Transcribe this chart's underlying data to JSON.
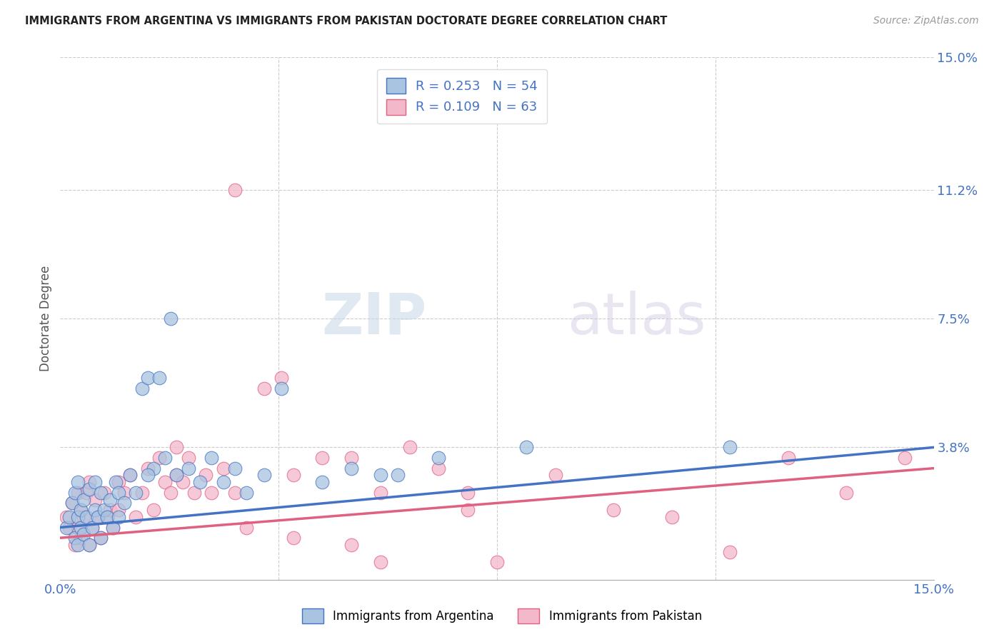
{
  "title": "IMMIGRANTS FROM ARGENTINA VS IMMIGRANTS FROM PAKISTAN DOCTORATE DEGREE CORRELATION CHART",
  "source": "Source: ZipAtlas.com",
  "xlabel": "",
  "ylabel": "Doctorate Degree",
  "xlim": [
    0.0,
    15.0
  ],
  "ylim": [
    0.0,
    15.0
  ],
  "grid_color": "#cccccc",
  "background_color": "#ffffff",
  "argentina_color": "#a8c4e0",
  "argentina_line_color": "#4472c4",
  "pakistan_color": "#f4b8cb",
  "pakistan_line_color": "#e06080",
  "argentina_R": 0.253,
  "argentina_N": 54,
  "pakistan_R": 0.109,
  "pakistan_N": 63,
  "watermark_zip": "ZIP",
  "watermark_atlas": "atlas",
  "argentina_x": [
    0.1,
    0.15,
    0.2,
    0.25,
    0.25,
    0.3,
    0.3,
    0.3,
    0.35,
    0.35,
    0.4,
    0.4,
    0.45,
    0.5,
    0.5,
    0.55,
    0.6,
    0.6,
    0.65,
    0.7,
    0.7,
    0.75,
    0.8,
    0.85,
    0.9,
    0.95,
    1.0,
    1.0,
    1.1,
    1.2,
    1.3,
    1.4,
    1.5,
    1.6,
    1.7,
    1.8,
    2.0,
    2.2,
    2.4,
    2.6,
    2.8,
    3.0,
    3.5,
    4.5,
    5.0,
    5.5,
    6.5,
    8.0,
    11.5,
    3.2,
    3.8,
    1.5,
    1.9,
    5.8
  ],
  "argentina_y": [
    1.5,
    1.8,
    2.2,
    1.2,
    2.5,
    1.0,
    1.8,
    2.8,
    1.5,
    2.0,
    1.3,
    2.3,
    1.8,
    1.0,
    2.6,
    1.5,
    2.0,
    2.8,
    1.8,
    1.2,
    2.5,
    2.0,
    1.8,
    2.3,
    1.5,
    2.8,
    1.8,
    2.5,
    2.2,
    3.0,
    2.5,
    5.5,
    5.8,
    3.2,
    5.8,
    3.5,
    3.0,
    3.2,
    2.8,
    3.5,
    2.8,
    3.2,
    3.0,
    2.8,
    3.2,
    3.0,
    3.5,
    3.8,
    3.8,
    2.5,
    5.5,
    3.0,
    7.5,
    3.0
  ],
  "pakistan_x": [
    0.1,
    0.15,
    0.2,
    0.25,
    0.3,
    0.3,
    0.35,
    0.35,
    0.4,
    0.45,
    0.5,
    0.5,
    0.55,
    0.6,
    0.65,
    0.7,
    0.75,
    0.8,
    0.85,
    0.9,
    1.0,
    1.0,
    1.1,
    1.2,
    1.3,
    1.4,
    1.5,
    1.6,
    1.7,
    1.8,
    1.9,
    2.0,
    2.1,
    2.2,
    2.3,
    2.5,
    2.6,
    2.8,
    3.0,
    3.2,
    3.5,
    3.8,
    4.0,
    4.5,
    5.0,
    5.5,
    6.0,
    6.5,
    7.0,
    7.5,
    8.5,
    9.5,
    10.5,
    11.5,
    12.5,
    13.5,
    14.5,
    2.0,
    3.0,
    4.0,
    5.5,
    7.0,
    5.0
  ],
  "pakistan_y": [
    1.8,
    1.5,
    2.2,
    1.0,
    2.5,
    1.5,
    1.2,
    2.0,
    1.8,
    2.5,
    1.0,
    2.8,
    1.5,
    2.3,
    1.8,
    1.2,
    2.5,
    1.8,
    2.0,
    1.5,
    2.8,
    2.0,
    2.5,
    3.0,
    1.8,
    2.5,
    3.2,
    2.0,
    3.5,
    2.8,
    2.5,
    3.0,
    2.8,
    3.5,
    2.5,
    3.0,
    2.5,
    3.2,
    2.5,
    1.5,
    5.5,
    5.8,
    3.0,
    3.5,
    3.5,
    2.5,
    3.8,
    3.2,
    2.5,
    0.5,
    3.0,
    2.0,
    1.8,
    0.8,
    3.5,
    2.5,
    3.5,
    3.8,
    11.2,
    1.2,
    0.5,
    2.0,
    1.0
  ]
}
